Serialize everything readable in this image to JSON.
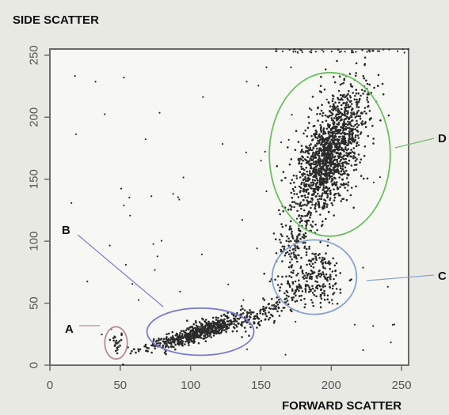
{
  "chart_data": {
    "type": "scatter",
    "title": "",
    "xlabel": "FORWARD SCATTER",
    "ylabel": "SIDE SCATTER",
    "xlim": [
      0,
      255
    ],
    "ylim": [
      0,
      255
    ],
    "xticks": [
      "0",
      "50",
      "100",
      "150",
      "200",
      "250"
    ],
    "yticks": [
      "0",
      "50",
      "100",
      "150",
      "200",
      "250"
    ],
    "grid": false,
    "point_color": "#2a2a2a",
    "populations": [
      {
        "name": "A",
        "gate_color": "#b58a9a",
        "center": [
          47,
          18
        ],
        "radii": [
          8,
          13
        ],
        "count": 22
      },
      {
        "name": "B",
        "gate_color": "#7b7bd0",
        "center": [
          107,
          27
        ],
        "radii": [
          38,
          19
        ],
        "count": 620
      },
      {
        "name": "C",
        "gate_color": "#8aa2c9",
        "center": [
          188,
          71
        ],
        "radii": [
          30,
          30
        ],
        "count": 230
      },
      {
        "name": "D",
        "gate_color": "#6dbf64",
        "center": [
          199,
          170
        ],
        "radii": [
          43,
          66
        ],
        "count": 1500
      }
    ],
    "gate_labels": [
      "A",
      "B",
      "C",
      "D"
    ]
  }
}
